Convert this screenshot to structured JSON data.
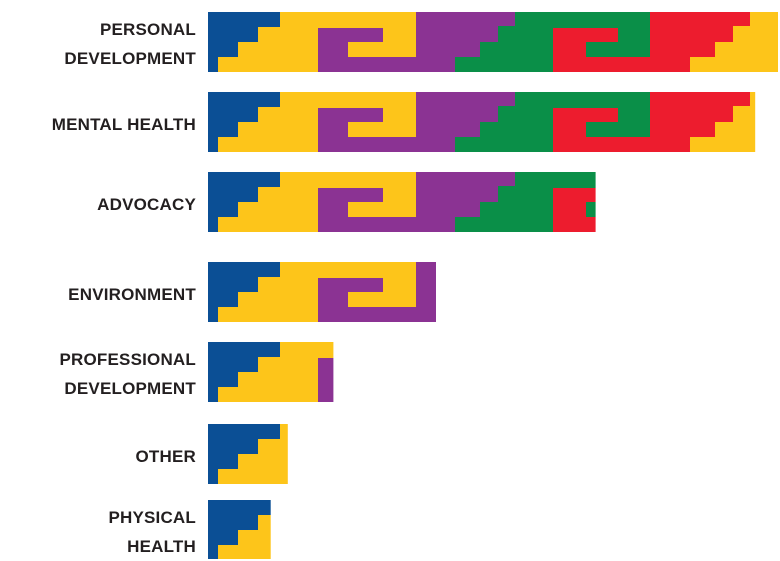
{
  "chart_data": {
    "type": "bar",
    "orientation": "horizontal",
    "categories": [
      "PERSONAL\nDEVELOPMENT",
      "MENTAL HEALTH",
      "ADVOCACY",
      "ENVIRONMENT",
      "PROFESSIONAL\nDEVELOPMENT",
      "OTHER",
      "PHYSICAL\nHEALTH"
    ],
    "values": [
      100,
      96,
      68,
      40,
      22,
      14,
      11
    ],
    "colors": {
      "blue": "#0b4f95",
      "yellow": "#fdc51a",
      "purple": "#8b3393",
      "green": "#0a8f48",
      "red": "#ed1c2e"
    }
  }
}
